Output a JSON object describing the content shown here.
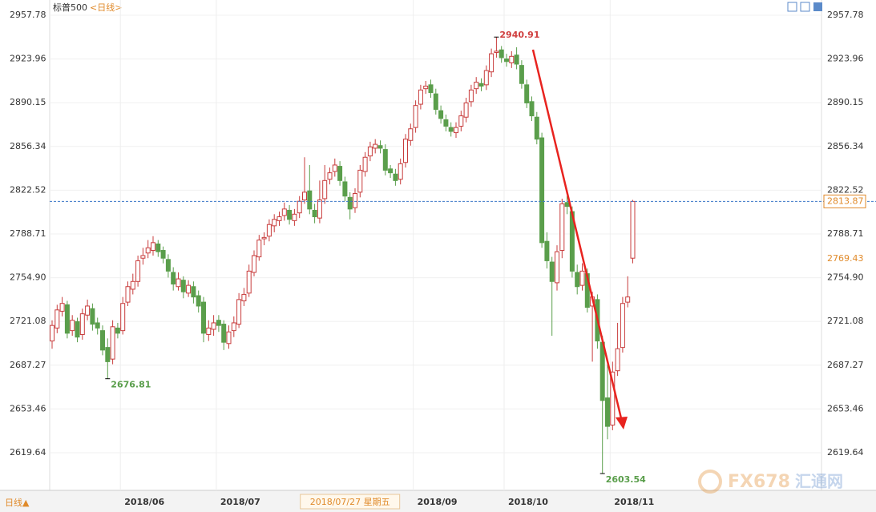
{
  "chart_data": {
    "type": "candlestick",
    "title": "标普500",
    "subtitle": "<日线>",
    "period_button": "日线▲",
    "watermark": "FX678",
    "watermark_cn": "汇通网",
    "up_color": "#c83c3c",
    "down_color": "#5a9e4b",
    "ylim": [
      2590.53,
      2969.55
    ],
    "yticks": [
      2619.64,
      2653.46,
      2687.27,
      2721.08,
      {
        "value": 2754.9,
        "label": "2754.90"
      },
      2788.71,
      2822.52,
      2856.34,
      2890.15,
      2923.96,
      2957.78
    ],
    "categories": [
      null,
      null,
      null,
      null,
      null,
      null,
      null,
      null,
      null,
      null,
      null,
      null,
      null,
      null,
      "2018/06",
      null,
      null,
      null,
      null,
      null,
      null,
      null,
      null,
      null,
      null,
      null,
      null,
      null,
      null,
      null,
      null,
      null,
      null,
      "2018/07",
      null,
      null,
      null,
      null,
      null,
      null,
      null,
      null,
      null,
      null,
      null,
      null,
      null,
      null,
      null,
      null,
      null,
      null,
      null,
      null,
      null,
      null,
      null,
      null,
      null,
      "2018/07/27 星期五",
      null,
      null,
      null,
      null,
      null,
      null,
      null,
      null,
      null,
      null,
      null,
      null,
      "2018/09",
      null,
      null,
      null,
      null,
      null,
      null,
      null,
      null,
      null,
      null,
      null,
      null,
      null,
      null,
      null,
      null,
      null,
      "2018/10",
      null,
      null,
      null,
      null,
      null,
      null,
      null,
      null,
      null,
      null,
      null,
      null,
      null,
      null,
      null,
      null,
      null,
      null,
      null,
      null,
      "2018/11",
      null,
      null,
      null,
      null
    ],
    "crosshair": {
      "category": 59,
      "value": 2769.43
    },
    "open": [
      2706,
      2716,
      2729,
      2734,
      2714,
      2721,
      2711,
      2726,
      2731,
      2720,
      2714,
      2701,
      2692,
      2716,
      2714,
      2736,
      2746,
      2752,
      2770,
      2774,
      2776,
      2781,
      2776,
      2769,
      2759,
      2748,
      2753,
      2743,
      2748,
      2741,
      2736,
      2711,
      2715,
      2722,
      2719,
      2704,
      2714,
      2719,
      2737,
      2743,
      2759,
      2771,
      2785,
      2787,
      2795,
      2799,
      2803,
      2807,
      2799,
      2805,
      2815,
      2822,
      2807,
      2801,
      2816,
      2831,
      2837,
      2841,
      2829,
      2817,
      2809,
      2821,
      2837,
      2849,
      2855,
      2857,
      2854,
      2839,
      2835,
      2831,
      2844,
      2861,
      2871,
      2889,
      2901,
      2904,
      2897,
      2884,
      2877,
      2871,
      2867,
      2872,
      2879,
      2891,
      2901,
      2905,
      2904,
      2914,
      2929,
      2931,
      2924,
      2921,
      2927,
      2919,
      2904,
      2891,
      2879,
      2863,
      2783,
      2767,
      2751,
      2776,
      2813,
      2806,
      2759,
      2749,
      2758,
      2733,
      2738,
      2705,
      2662,
      2641,
      2683,
      2701,
      2736,
      2770
    ],
    "high": [
      2722,
      2734,
      2740,
      2737,
      2726,
      2724,
      2731,
      2738,
      2735,
      2724,
      2718,
      2708,
      2722,
      2720,
      2740,
      2752,
      2758,
      2772,
      2778,
      2784,
      2787,
      2784,
      2779,
      2773,
      2763,
      2759,
      2756,
      2753,
      2752,
      2745,
      2740,
      2722,
      2726,
      2726,
      2722,
      2718,
      2725,
      2743,
      2747,
      2765,
      2776,
      2788,
      2790,
      2800,
      2804,
      2806,
      2813,
      2811,
      2808,
      2818,
      2848,
      2842,
      2812,
      2830,
      2842,
      2840,
      2847,
      2845,
      2833,
      2821,
      2824,
      2842,
      2852,
      2860,
      2862,
      2861,
      2858,
      2842,
      2839,
      2847,
      2866,
      2874,
      2892,
      2904,
      2907,
      2908,
      2901,
      2888,
      2881,
      2875,
      2875,
      2884,
      2894,
      2904,
      2910,
      2909,
      2919,
      2932,
      2940.91,
      2934,
      2928,
      2930,
      2933,
      2923,
      2908,
      2895,
      2883,
      2867,
      2790,
      2771,
      2780,
      2816,
      2818,
      2810,
      2765,
      2766,
      2762,
      2744,
      2742,
      2710,
      2688,
      2690,
      2720,
      2740,
      2756,
      2815
    ],
    "low": [
      2700,
      2712,
      2725,
      2708,
      2710,
      2705,
      2707,
      2722,
      2714,
      2711,
      2695,
      2676.81,
      2688,
      2708,
      2711,
      2733,
      2742,
      2748,
      2765,
      2770,
      2772,
      2771,
      2766,
      2755,
      2745,
      2745,
      2739,
      2740,
      2735,
      2728,
      2705,
      2706,
      2710,
      2713,
      2699,
      2700,
      2709,
      2716,
      2733,
      2740,
      2756,
      2768,
      2780,
      2783,
      2790,
      2795,
      2799,
      2796,
      2795,
      2801,
      2812,
      2804,
      2797,
      2797,
      2812,
      2827,
      2833,
      2826,
      2814,
      2800,
      2805,
      2817,
      2833,
      2845,
      2851,
      2851,
      2834,
      2832,
      2826,
      2827,
      2840,
      2857,
      2867,
      2885,
      2897,
      2894,
      2881,
      2874,
      2868,
      2864,
      2863,
      2868,
      2875,
      2887,
      2897,
      2899,
      2900,
      2910,
      2925,
      2921,
      2918,
      2917,
      2916,
      2901,
      2886,
      2876,
      2858,
      2778,
      2762,
      2710,
      2745,
      2770,
      2804,
      2755,
      2742,
      2745,
      2728,
      2690,
      2700,
      2603.54,
      2630,
      2637,
      2679,
      2697,
      2732,
      2766
    ],
    "close": [
      2718,
      2730,
      2735,
      2712,
      2722,
      2709,
      2727,
      2733,
      2719,
      2716,
      2699,
      2690,
      2717,
      2712,
      2735,
      2748,
      2752,
      2768,
      2772,
      2778,
      2782,
      2775,
      2770,
      2760,
      2750,
      2754,
      2744,
      2749,
      2740,
      2733,
      2712,
      2716,
      2720,
      2718,
      2705,
      2713,
      2720,
      2738,
      2742,
      2760,
      2772,
      2784,
      2786,
      2796,
      2800,
      2802,
      2808,
      2800,
      2804,
      2814,
      2821,
      2808,
      2802,
      2815,
      2830,
      2836,
      2842,
      2830,
      2818,
      2808,
      2820,
      2838,
      2848,
      2856,
      2858,
      2855,
      2838,
      2836,
      2830,
      2843,
      2862,
      2870,
      2888,
      2900,
      2903,
      2898,
      2885,
      2878,
      2872,
      2868,
      2871,
      2880,
      2890,
      2900,
      2906,
      2903,
      2915,
      2928,
      2930,
      2925,
      2922,
      2926,
      2920,
      2905,
      2890,
      2880,
      2862,
      2782,
      2768,
      2752,
      2775,
      2812,
      2810,
      2760,
      2748,
      2760,
      2732,
      2740,
      2706,
      2660,
      2640,
      2682,
      2700,
      2735,
      2740,
      2813.87
    ],
    "annotations": [
      {
        "value": 2940.91,
        "category": 88,
        "color": "#d04040"
      },
      {
        "value": 2676.81,
        "category": 11,
        "color": "#5a9e4b"
      },
      {
        "value": 2603.54,
        "category": 109,
        "color": "#5a9e4b"
      }
    ]
  }
}
